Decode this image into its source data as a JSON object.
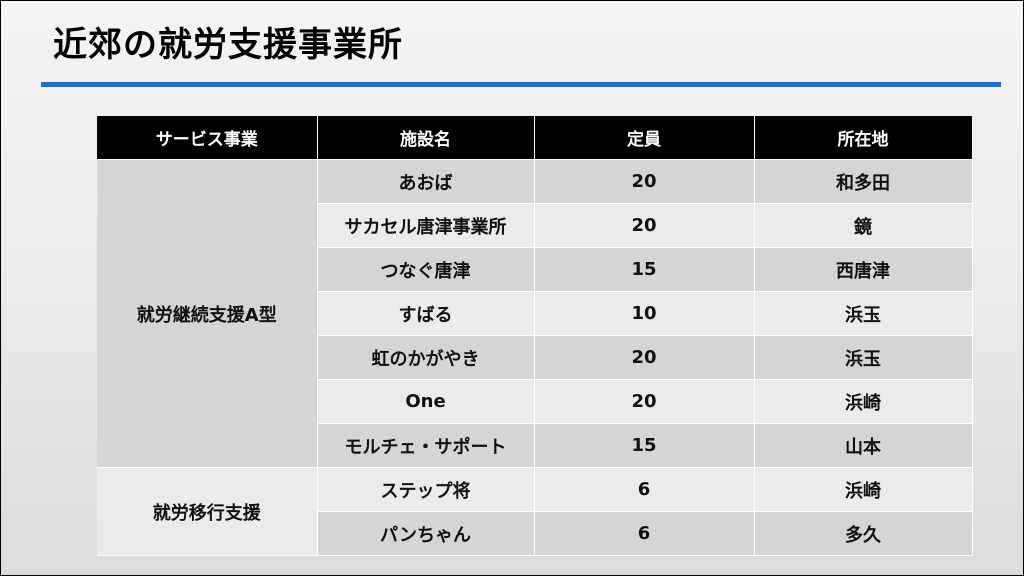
{
  "title": "近郊の就労支援事業所",
  "accent_color": "#1a73c8",
  "table": {
    "headers": [
      "サービス事業",
      "施設名",
      "定員",
      "所在地"
    ],
    "groups": [
      {
        "service": "就労継続支援A型",
        "rows": [
          {
            "name": "あおば",
            "capacity": "20",
            "location": "和多田"
          },
          {
            "name": "サカセル唐津事業所",
            "capacity": "20",
            "location": "鏡"
          },
          {
            "name": "つなぐ唐津",
            "capacity": "15",
            "location": "西唐津"
          },
          {
            "name": "すばる",
            "capacity": "10",
            "location": "浜玉"
          },
          {
            "name": "虹のかがやき",
            "capacity": "20",
            "location": "浜玉"
          },
          {
            "name": "One",
            "capacity": "20",
            "location": "浜崎"
          },
          {
            "name": "モルチェ・サポート",
            "capacity": "15",
            "location": "山本"
          }
        ]
      },
      {
        "service": "就労移行支援",
        "rows": [
          {
            "name": "ステップ将",
            "capacity": "6",
            "location": "浜崎"
          },
          {
            "name": "パンちゃん",
            "capacity": "6",
            "location": "多久"
          }
        ]
      }
    ]
  }
}
